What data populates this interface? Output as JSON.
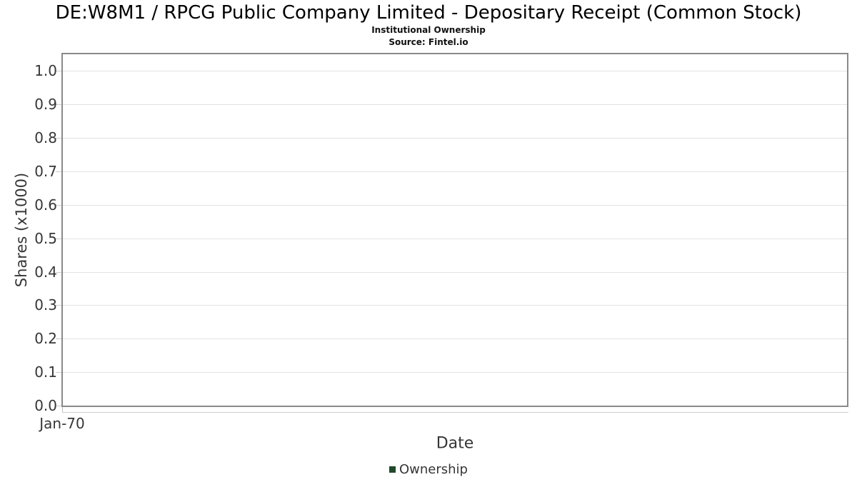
{
  "chart_data": {
    "type": "line",
    "title": "DE:W8M1 / RPCG Public Company Limited - Depositary Receipt (Common Stock)",
    "subtitle": "Institutional Ownership",
    "source": "Source: Fintel.io",
    "xlabel": "Date",
    "ylabel": "Shares (x1000)",
    "xticks": [
      "Jan-70"
    ],
    "yticks": [
      "0.0",
      "0.1",
      "0.2",
      "0.3",
      "0.4",
      "0.5",
      "0.6",
      "0.7",
      "0.8",
      "0.9",
      "1.0"
    ],
    "ylim": [
      0,
      1.05
    ],
    "grid": true,
    "legend_position": "bottom",
    "series": [
      {
        "name": "Ownership",
        "color": "#1f4a2a",
        "x": [],
        "values": []
      }
    ],
    "colors": {
      "plot_border": "#8a8a8a",
      "gridline": "#e2e2e2",
      "tick": "#cccccc",
      "axis_text": "#363636",
      "title_text": "#000000",
      "legend_marker": "#1f4a2a"
    }
  }
}
